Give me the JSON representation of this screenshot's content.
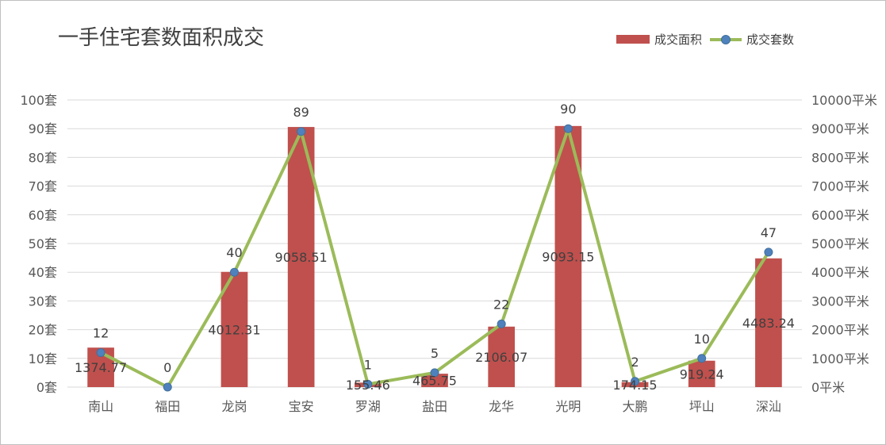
{
  "chart_data": {
    "type": "bar+line",
    "title": "一手住宅套数面积成交",
    "categories": [
      "南山",
      "福田",
      "龙岗",
      "宝安",
      "罗湖",
      "盐田",
      "龙华",
      "光明",
      "大鹏",
      "坪山",
      "深汕"
    ],
    "series": [
      {
        "name": "成交面积",
        "type": "bar",
        "axis": "right",
        "values": [
          1374.77,
          0,
          4012.31,
          9058.51,
          155.46,
          465.75,
          2106.07,
          9093.15,
          174.15,
          919.24,
          4483.24
        ],
        "labels": [
          "1374.77",
          "",
          "4012.31",
          "9058.51",
          "155.46",
          "465.75",
          "2106.07",
          "9093.15",
          "174.15",
          "919.24",
          "4483.24"
        ],
        "color": "#c0504d"
      },
      {
        "name": "成交套数",
        "type": "line",
        "axis": "left",
        "values": [
          12,
          0,
          40,
          89,
          1,
          5,
          22,
          90,
          2,
          10,
          47
        ],
        "labels": [
          "12",
          "0",
          "40",
          "89",
          "1",
          "5",
          "22",
          "90",
          "2",
          "10",
          "47"
        ],
        "color": "#9bbb59",
        "marker_color": "#4f81bd"
      }
    ],
    "y_left": {
      "range": [
        0,
        100
      ],
      "ticks": [
        0,
        10,
        20,
        30,
        40,
        50,
        60,
        70,
        80,
        90,
        100
      ],
      "tick_labels": [
        "0套",
        "10套",
        "20套",
        "30套",
        "40套",
        "50套",
        "60套",
        "70套",
        "80套",
        "90套",
        "100套"
      ]
    },
    "y_right": {
      "range": [
        0,
        10000
      ],
      "ticks": [
        0,
        1000,
        2000,
        3000,
        4000,
        5000,
        6000,
        7000,
        8000,
        9000,
        10000
      ],
      "tick_labels": [
        "0平米",
        "1000平米",
        "2000平米",
        "3000平米",
        "4000平米",
        "5000平米",
        "6000平米",
        "7000平米",
        "8000平米",
        "9000平米",
        "10000平米"
      ]
    },
    "grid": true,
    "legend": "top-right"
  }
}
